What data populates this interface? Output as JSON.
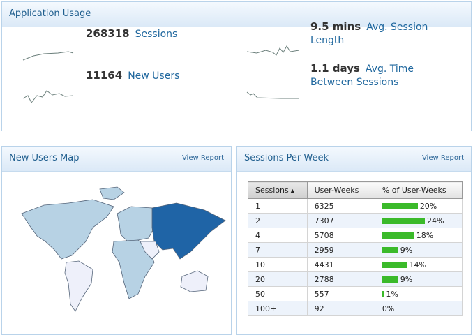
{
  "application_usage": {
    "title": "Application Usage",
    "metrics": [
      {
        "value": "268318",
        "label": "Sessions"
      },
      {
        "value": "11164",
        "label": "New Users"
      },
      {
        "value": "9.5 mins",
        "label": "Avg. Session Length"
      },
      {
        "value": "1.1 days",
        "label": "Avg. Time Between Sessions"
      }
    ]
  },
  "new_users_map": {
    "title": "New Users Map",
    "link": "View Report"
  },
  "sessions_per_week": {
    "title": "Sessions Per Week",
    "link": "View Report",
    "table": {
      "columns": [
        "Sessions",
        "User-Weeks",
        "% of User-Weeks"
      ],
      "rows": [
        [
          "1",
          "6325",
          {
            "value": 20,
            "label": "20%"
          }
        ],
        [
          "2",
          "7307",
          {
            "value": 24,
            "label": "24%"
          }
        ],
        [
          "4",
          "5708",
          {
            "value": 18,
            "label": "18%"
          }
        ],
        [
          "7",
          "2959",
          {
            "value": 9,
            "label": "9%"
          }
        ],
        [
          "10",
          "4431",
          {
            "value": 14,
            "label": "14%"
          }
        ],
        [
          "20",
          "2788",
          {
            "value": 9,
            "label": "9%"
          }
        ],
        [
          "50",
          "557",
          {
            "value": 1,
            "label": "1%"
          }
        ],
        [
          "100+",
          "92",
          {
            "value": 0,
            "label": "0%"
          }
        ]
      ]
    }
  }
}
